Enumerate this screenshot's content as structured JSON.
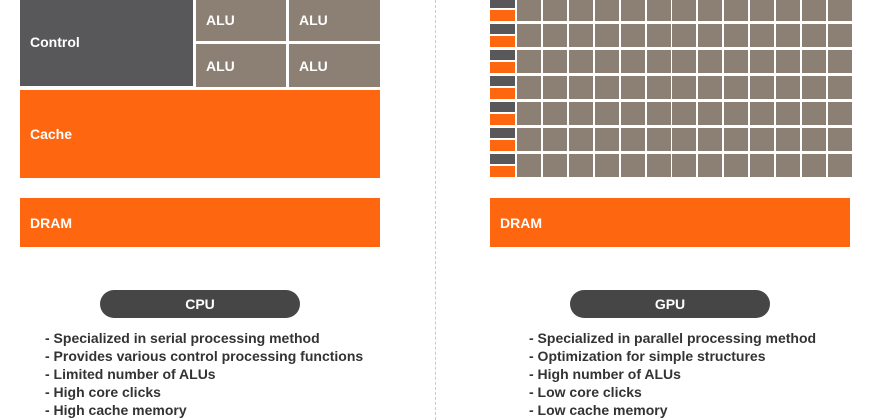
{
  "cpu": {
    "control_label": "Control",
    "alu_labels": [
      "ALU",
      "ALU",
      "ALU",
      "ALU"
    ],
    "cache_label": "Cache",
    "dram_label": "DRAM",
    "title": "CPU",
    "features": [
      "- Specialized in serial processing method",
      "- Provides various control processing functions",
      "- Limited number of ALUs",
      "- High core clicks",
      "- High cache memory"
    ]
  },
  "gpu": {
    "dram_label": "DRAM",
    "title": "GPU",
    "features": [
      "- Specialized in parallel processing method",
      "- Optimization for simple structures",
      "- High number of ALUs",
      "- Low core clicks",
      "- Low cache memory"
    ]
  },
  "colors": {
    "control": "#58585a",
    "alu": "#8c8075",
    "cache_dram": "#ff6610",
    "pill": "#464646"
  }
}
